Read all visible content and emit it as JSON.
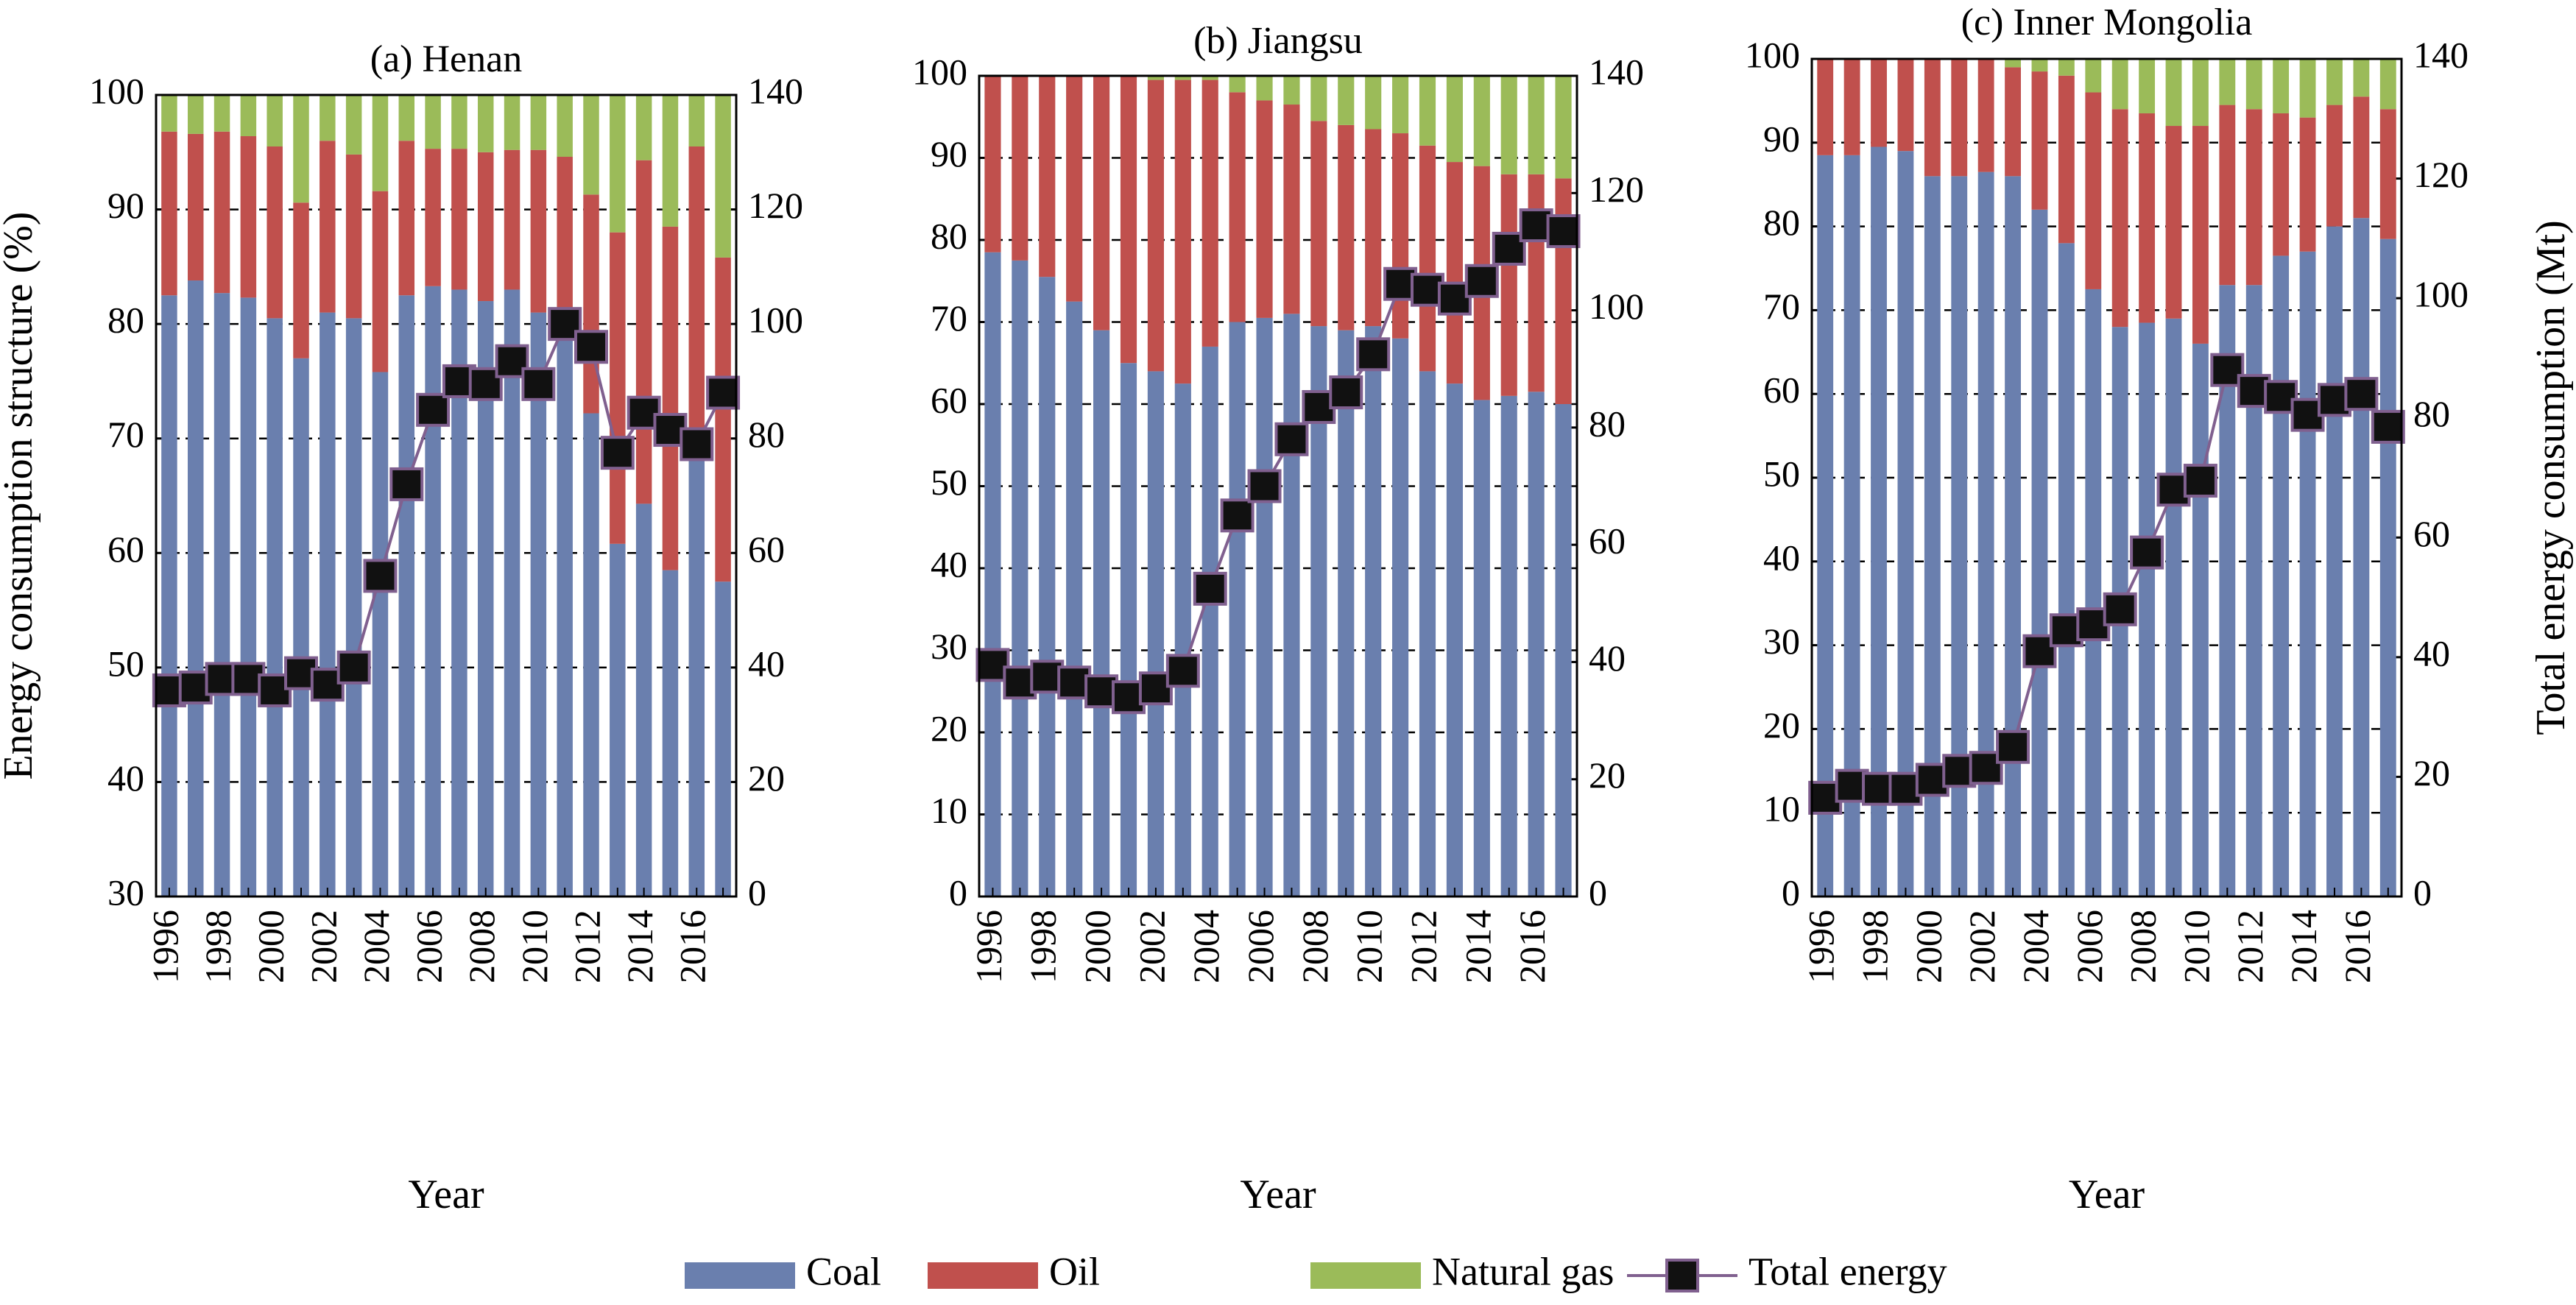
{
  "legend": [
    {
      "name": "Coal",
      "color": "#6a7fae"
    },
    {
      "name": "Oil",
      "color": "#c0504d"
    },
    {
      "name": "Natural gas",
      "color": "#9bbb59"
    },
    {
      "name": "Total energy",
      "color": "#80608f",
      "marker_color": "#111111"
    }
  ],
  "chart_data": [
    {
      "type": "bar",
      "stacked": true,
      "title": "(a) Henan",
      "xlabel": "Year",
      "ylabel": "Energy consumption structure (%)",
      "categories": [
        1996,
        null,
        1998,
        null,
        2000,
        null,
        2002,
        null,
        2004,
        null,
        2006,
        null,
        2008,
        null,
        2010,
        null,
        2012,
        null,
        2014,
        null,
        2016,
        null
      ],
      "series": [
        {
          "values": [
            82.5,
            83.8,
            82.7,
            82.3,
            80.5,
            77,
            81,
            80.5,
            75.8,
            82.5,
            83.3,
            83,
            82,
            83,
            81,
            80,
            72.2,
            60.8,
            64.3,
            58.5,
            70,
            57.5
          ]
        },
        {
          "values": [
            14.3,
            12.8,
            14.1,
            14.1,
            15,
            13.6,
            15,
            14.3,
            15.8,
            13.5,
            12,
            12.3,
            13,
            12.2,
            14.2,
            14.6,
            19.1,
            27.2,
            30,
            30,
            25.5,
            28.3
          ]
        },
        {
          "values": [
            3.2,
            3.4,
            3.2,
            3.6,
            4.5,
            9.4,
            4,
            5.2,
            8.4,
            4,
            4.7,
            4.7,
            5,
            4.8,
            4.8,
            5.4,
            8.7,
            12,
            5.7,
            11.5,
            4.5,
            14.2
          ]
        },
        {
          "axis": "y2",
          "values": [
            36,
            36.5,
            38,
            38,
            36,
            39,
            37,
            40,
            56,
            72,
            85,
            90,
            89.5,
            93.5,
            89.5,
            100,
            96,
            77.5,
            84.5,
            81.5,
            79,
            88
          ]
        }
      ],
      "ylim": [
        30,
        100
      ],
      "yticks": [
        30,
        40,
        50,
        60,
        70,
        80,
        90,
        100
      ],
      "y2lim": [
        0,
        140
      ],
      "y2ticks": [
        0,
        20,
        40,
        60,
        80,
        100,
        120,
        140
      ],
      "grid": true
    },
    {
      "type": "bar",
      "stacked": true,
      "title": "(b) Jiangsu",
      "xlabel": "Year",
      "categories": [
        1996,
        null,
        1998,
        null,
        2000,
        null,
        2002,
        null,
        2004,
        null,
        2006,
        null,
        2008,
        null,
        2010,
        null,
        2012,
        null,
        2014,
        null,
        2016,
        null
      ],
      "series": [
        {
          "values": [
            78.5,
            77.5,
            75.5,
            72.5,
            69,
            65,
            64,
            62.5,
            67,
            70,
            70.5,
            71,
            69.5,
            69,
            69.5,
            68,
            64,
            62.5,
            60.5,
            61,
            61.5,
            60
          ]
        },
        {
          "values": [
            21.5,
            22.5,
            24.5,
            27.5,
            31,
            35,
            35.5,
            37,
            32.5,
            28,
            26.5,
            25.5,
            25,
            25,
            24,
            25,
            27.5,
            27,
            28.5,
            27,
            26.5,
            27.5
          ]
        },
        {
          "values": [
            0,
            0,
            0,
            0,
            0,
            0,
            0.5,
            0.5,
            0.5,
            2,
            3,
            3.5,
            5.5,
            6,
            6.5,
            7,
            8.5,
            10.5,
            11,
            12,
            12,
            12.5
          ]
        },
        {
          "axis": "y2",
          "values": [
            39.5,
            36.5,
            37.5,
            36.5,
            35,
            34,
            35.5,
            38.5,
            52.5,
            65,
            70,
            78,
            83.5,
            86,
            92.5,
            104.5,
            103.5,
            102,
            105,
            110.5,
            114.5,
            113.5
          ]
        }
      ],
      "ylim": [
        0,
        100
      ],
      "yticks": [
        0,
        10,
        20,
        30,
        40,
        50,
        60,
        70,
        80,
        90,
        100
      ],
      "y2lim": [
        0,
        140
      ],
      "y2ticks": [
        0,
        20,
        40,
        60,
        80,
        100,
        120,
        140
      ],
      "grid": true
    },
    {
      "type": "bar",
      "stacked": true,
      "title": "(c)  Inner Mongolia",
      "xlabel": "Year",
      "y2label": "Total energy consumption (Mt)",
      "categories": [
        1996,
        null,
        1998,
        null,
        2000,
        null,
        2002,
        null,
        2004,
        null,
        2006,
        null,
        2008,
        null,
        2010,
        null,
        2012,
        null,
        2014,
        null,
        2016,
        null
      ],
      "series": [
        {
          "values": [
            88.5,
            88.5,
            89.5,
            89,
            86,
            86,
            86.5,
            86,
            82,
            78,
            72.5,
            68,
            68.5,
            69,
            66,
            73,
            73,
            76.5,
            77,
            80,
            81,
            78.5
          ]
        },
        {
          "values": [
            11.5,
            11.5,
            10.5,
            11,
            14,
            14,
            13.5,
            13,
            16.5,
            20,
            23.5,
            26,
            25,
            23,
            26,
            21.5,
            21,
            17,
            16,
            14.5,
            14.5,
            15.5
          ]
        },
        {
          "values": [
            0,
            0,
            0,
            0,
            0,
            0,
            0,
            1,
            1.5,
            2,
            4,
            6,
            6.5,
            8,
            8,
            5.5,
            6,
            6.5,
            7,
            5.5,
            4.5,
            6
          ]
        },
        {
          "axis": "y2",
          "values": [
            16.5,
            18.5,
            18,
            18,
            19.5,
            21,
            21.5,
            25,
            41,
            44.5,
            45.5,
            48,
            57.5,
            68,
            69.5,
            88,
            84.5,
            83.5,
            80.5,
            83,
            84,
            78.5
          ]
        }
      ],
      "ylim": [
        0,
        100
      ],
      "yticks": [
        0,
        10,
        20,
        30,
        40,
        50,
        60,
        70,
        80,
        90,
        100
      ],
      "y2lim": [
        0,
        140
      ],
      "y2ticks": [
        0,
        20,
        40,
        60,
        80,
        100,
        120,
        140
      ],
      "grid": true
    }
  ]
}
